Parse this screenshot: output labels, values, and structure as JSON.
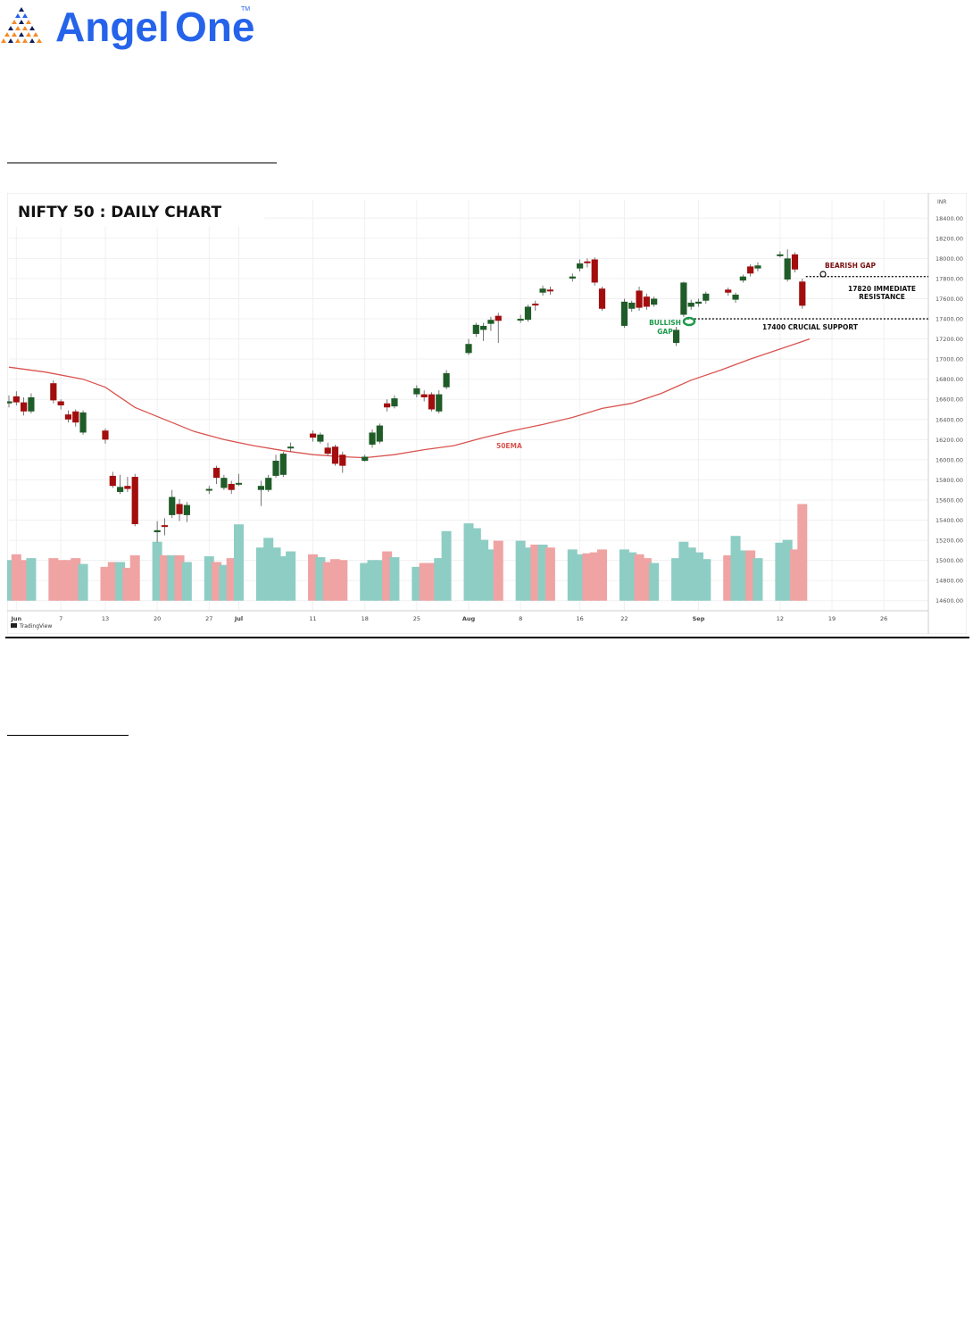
{
  "brand": {
    "name_part1": "Angel",
    "name_part2": "One",
    "tm": "TM",
    "color_primary": "#2563eb",
    "color_accent": "#f28c28",
    "color_dark": "#0b1f5c"
  },
  "chart_data": {
    "type": "candlestick",
    "title": "NIFTY 50 : DAILY CHART",
    "currency": "INR",
    "y_ticks": [
      14600,
      14800,
      15000,
      15200,
      15400,
      15600,
      15800,
      16000,
      16200,
      16400,
      16600,
      16800,
      17000,
      17200,
      17400,
      17600,
      17800,
      18000,
      18200,
      18400
    ],
    "y_range": [
      14500,
      18580
    ],
    "x_ticks": [
      {
        "label": "Jun",
        "day": 1
      },
      {
        "label": "7",
        "day": 7
      },
      {
        "label": "13",
        "day": 13
      },
      {
        "label": "20",
        "day": 20
      },
      {
        "label": "27",
        "day": 27
      },
      {
        "label": "Jul",
        "day": 31
      },
      {
        "label": "11",
        "day": 41
      },
      {
        "label": "18",
        "day": 48
      },
      {
        "label": "25",
        "day": 55
      },
      {
        "label": "Aug",
        "day": 62
      },
      {
        "label": "8",
        "day": 69
      },
      {
        "label": "16",
        "day": 77
      },
      {
        "label": "22",
        "day": 83
      },
      {
        "label": "Sep",
        "day": 93
      },
      {
        "label": "12",
        "day": 104
      },
      {
        "label": "19",
        "day": 111
      },
      {
        "label": "26",
        "day": 118
      }
    ],
    "x_range": [
      0,
      124
    ],
    "colors": {
      "up": "#1f5c28",
      "down": "#a30d0d",
      "vol_up": "#8ecdc4",
      "vol_down": "#efa3a3",
      "ema": "#d9534f"
    },
    "candles": [
      {
        "day": 0,
        "o": 16560,
        "c": 16580,
        "h": 16640,
        "l": 16520,
        "v": 0.42
      },
      {
        "day": 1,
        "o": 16630,
        "c": 16570,
        "h": 16680,
        "l": 16540,
        "v": 0.48
      },
      {
        "day": 2,
        "o": 16570,
        "c": 16480,
        "h": 16620,
        "l": 16440,
        "v": 0.42
      },
      {
        "day": 3,
        "o": 16480,
        "c": 16620,
        "h": 16660,
        "l": 16460,
        "v": 0.44
      },
      {
        "day": 6,
        "o": 16760,
        "c": 16590,
        "h": 16790,
        "l": 16560,
        "v": 0.44
      },
      {
        "day": 7,
        "o": 16580,
        "c": 16540,
        "h": 16600,
        "l": 16500,
        "v": 0.42
      },
      {
        "day": 8,
        "o": 16450,
        "c": 16400,
        "h": 16490,
        "l": 16370,
        "v": 0.42
      },
      {
        "day": 9,
        "o": 16480,
        "c": 16370,
        "h": 16500,
        "l": 16330,
        "v": 0.44
      },
      {
        "day": 10,
        "o": 16270,
        "c": 16470,
        "h": 16490,
        "l": 16250,
        "v": 0.38
      },
      {
        "day": 13,
        "o": 16290,
        "c": 16200,
        "h": 16310,
        "l": 16160,
        "v": 0.35
      },
      {
        "day": 14,
        "o": 15840,
        "c": 15740,
        "h": 15880,
        "l": 15720,
        "v": 0.4
      },
      {
        "day": 15,
        "o": 15680,
        "c": 15730,
        "h": 15850,
        "l": 15660,
        "v": 0.4
      },
      {
        "day": 16,
        "o": 15740,
        "c": 15710,
        "h": 15830,
        "l": 15680,
        "v": 0.34
      },
      {
        "day": 17,
        "o": 15830,
        "c": 15360,
        "h": 15860,
        "l": 15340,
        "v": 0.47
      },
      {
        "day": 20,
        "o": 15280,
        "c": 15300,
        "h": 15390,
        "l": 15180,
        "v": 0.61
      },
      {
        "day": 21,
        "o": 15350,
        "c": 15340,
        "h": 15420,
        "l": 15250,
        "v": 0.47
      },
      {
        "day": 22,
        "o": 15450,
        "c": 15630,
        "h": 15700,
        "l": 15420,
        "v": 0.47
      },
      {
        "day": 23,
        "o": 15560,
        "c": 15460,
        "h": 15610,
        "l": 15390,
        "v": 0.47
      },
      {
        "day": 24,
        "o": 15450,
        "c": 15550,
        "h": 15580,
        "l": 15380,
        "v": 0.4
      },
      {
        "day": 27,
        "o": 15700,
        "c": 15710,
        "h": 15740,
        "l": 15660,
        "v": 0.46
      },
      {
        "day": 28,
        "o": 15920,
        "c": 15820,
        "h": 15940,
        "l": 15760,
        "v": 0.4
      },
      {
        "day": 29,
        "o": 15720,
        "c": 15820,
        "h": 15850,
        "l": 15700,
        "v": 0.37
      },
      {
        "day": 30,
        "o": 15760,
        "c": 15700,
        "h": 15790,
        "l": 15660,
        "v": 0.44
      },
      {
        "day": 31,
        "o": 15760,
        "c": 15770,
        "h": 15860,
        "l": 15740,
        "v": 0.79
      },
      {
        "day": 34,
        "o": 15700,
        "c": 15740,
        "h": 15790,
        "l": 15540,
        "v": 0.55
      },
      {
        "day": 35,
        "o": 15700,
        "c": 15820,
        "h": 15850,
        "l": 15680,
        "v": 0.65
      },
      {
        "day": 36,
        "o": 15840,
        "c": 15990,
        "h": 16050,
        "l": 15820,
        "v": 0.55
      },
      {
        "day": 37,
        "o": 15850,
        "c": 16060,
        "h": 16080,
        "l": 15830,
        "v": 0.46
      },
      {
        "day": 38,
        "o": 16120,
        "c": 16130,
        "h": 16170,
        "l": 16080,
        "v": 0.51
      },
      {
        "day": 41,
        "o": 16260,
        "c": 16220,
        "h": 16290,
        "l": 16180,
        "v": 0.48
      },
      {
        "day": 42,
        "o": 16180,
        "c": 16250,
        "h": 16270,
        "l": 16160,
        "v": 0.45
      },
      {
        "day": 43,
        "o": 16120,
        "c": 16060,
        "h": 16170,
        "l": 16040,
        "v": 0.4
      },
      {
        "day": 44,
        "o": 16130,
        "c": 15960,
        "h": 16150,
        "l": 15940,
        "v": 0.43
      },
      {
        "day": 45,
        "o": 16050,
        "c": 15940,
        "h": 16080,
        "l": 15870,
        "v": 0.42
      },
      {
        "day": 48,
        "o": 15990,
        "c": 16030,
        "h": 16050,
        "l": 15980,
        "v": 0.39
      },
      {
        "day": 49,
        "o": 16150,
        "c": 16270,
        "h": 16300,
        "l": 16120,
        "v": 0.42
      },
      {
        "day": 50,
        "o": 16180,
        "c": 16340,
        "h": 16360,
        "l": 16160,
        "v": 0.42
      },
      {
        "day": 51,
        "o": 16560,
        "c": 16520,
        "h": 16600,
        "l": 16480,
        "v": 0.51
      },
      {
        "day": 52,
        "o": 16530,
        "c": 16610,
        "h": 16640,
        "l": 16510,
        "v": 0.45
      },
      {
        "day": 55,
        "o": 16650,
        "c": 16710,
        "h": 16740,
        "l": 16620,
        "v": 0.35
      },
      {
        "day": 56,
        "o": 16650,
        "c": 16620,
        "h": 16690,
        "l": 16580,
        "v": 0.39
      },
      {
        "day": 57,
        "o": 16650,
        "c": 16500,
        "h": 16670,
        "l": 16480,
        "v": 0.39
      },
      {
        "day": 58,
        "o": 16480,
        "c": 16650,
        "h": 16690,
        "l": 16460,
        "v": 0.44
      },
      {
        "day": 59,
        "o": 16720,
        "c": 16860,
        "h": 16890,
        "l": 16700,
        "v": 0.72
      },
      {
        "day": 62,
        "o": 17060,
        "c": 17150,
        "h": 17200,
        "l": 17040,
        "v": 0.8
      },
      {
        "day": 63,
        "o": 17250,
        "c": 17340,
        "h": 17360,
        "l": 17220,
        "v": 0.75
      },
      {
        "day": 64,
        "o": 17290,
        "c": 17330,
        "h": 17360,
        "l": 17180,
        "v": 0.63
      },
      {
        "day": 65,
        "o": 17350,
        "c": 17390,
        "h": 17420,
        "l": 17280,
        "v": 0.53
      },
      {
        "day": 66,
        "o": 17430,
        "c": 17380,
        "h": 17460,
        "l": 17160,
        "v": 0.62
      },
      {
        "day": 69,
        "o": 17400,
        "c": 17400,
        "h": 17440,
        "l": 17360,
        "v": 0.62
      },
      {
        "day": 70,
        "o": 17390,
        "c": 17520,
        "h": 17540,
        "l": 17370,
        "v": 0.55
      },
      {
        "day": 71,
        "o": 17550,
        "c": 17540,
        "h": 17580,
        "l": 17480,
        "v": 0.58
      },
      {
        "day": 72,
        "o": 17660,
        "c": 17700,
        "h": 17730,
        "l": 17630,
        "v": 0.58
      },
      {
        "day": 73,
        "o": 17690,
        "c": 17680,
        "h": 17720,
        "l": 17640,
        "v": 0.55
      },
      {
        "day": 76,
        "o": 17800,
        "c": 17820,
        "h": 17850,
        "l": 17770,
        "v": 0.53
      },
      {
        "day": 77,
        "o": 17900,
        "c": 17950,
        "h": 17990,
        "l": 17870,
        "v": 0.48
      },
      {
        "day": 78,
        "o": 17970,
        "c": 17960,
        "h": 18000,
        "l": 17910,
        "v": 0.49
      },
      {
        "day": 79,
        "o": 17990,
        "c": 17760,
        "h": 18010,
        "l": 17730,
        "v": 0.5
      },
      {
        "day": 80,
        "o": 17700,
        "c": 17500,
        "h": 17720,
        "l": 17480,
        "v": 0.53
      },
      {
        "day": 83,
        "o": 17330,
        "c": 17570,
        "h": 17600,
        "l": 17310,
        "v": 0.53
      },
      {
        "day": 84,
        "o": 17500,
        "c": 17560,
        "h": 17580,
        "l": 17470,
        "v": 0.5
      },
      {
        "day": 85,
        "o": 17680,
        "c": 17510,
        "h": 17720,
        "l": 17480,
        "v": 0.48
      },
      {
        "day": 86,
        "o": 17620,
        "c": 17520,
        "h": 17650,
        "l": 17490,
        "v": 0.44
      },
      {
        "day": 87,
        "o": 17540,
        "c": 17600,
        "h": 17620,
        "l": 17520,
        "v": 0.39
      },
      {
        "day": 90,
        "o": 17160,
        "c": 17290,
        "h": 17320,
        "l": 17130,
        "v": 0.44
      },
      {
        "day": 91,
        "o": 17440,
        "c": 17760,
        "h": 17770,
        "l": 17420,
        "v": 0.61
      },
      {
        "day": 92,
        "o": 17520,
        "c": 17560,
        "h": 17590,
        "l": 17490,
        "v": 0.55
      },
      {
        "day": 93,
        "o": 17550,
        "c": 17570,
        "h": 17600,
        "l": 17520,
        "v": 0.5
      },
      {
        "day": 94,
        "o": 17580,
        "c": 17650,
        "h": 17670,
        "l": 17550,
        "v": 0.43
      },
      {
        "day": 97,
        "o": 17690,
        "c": 17660,
        "h": 17710,
        "l": 17630,
        "v": 0.47
      },
      {
        "day": 98,
        "o": 17590,
        "c": 17640,
        "h": 17660,
        "l": 17560,
        "v": 0.67
      },
      {
        "day": 99,
        "o": 17780,
        "c": 17820,
        "h": 17840,
        "l": 17760,
        "v": 0.52
      },
      {
        "day": 100,
        "o": 17920,
        "c": 17850,
        "h": 17940,
        "l": 17820,
        "v": 0.52
      },
      {
        "day": 101,
        "o": 17900,
        "c": 17930,
        "h": 17960,
        "l": 17870,
        "v": 0.44
      },
      {
        "day": 104,
        "o": 18030,
        "c": 18040,
        "h": 18070,
        "l": 18010,
        "v": 0.6
      },
      {
        "day": 105,
        "o": 17790,
        "c": 18000,
        "h": 18090,
        "l": 17770,
        "v": 0.63
      },
      {
        "day": 106,
        "o": 18040,
        "c": 17890,
        "h": 18060,
        "l": 17860,
        "v": 0.53
      },
      {
        "day": 107,
        "o": 17770,
        "c": 17530,
        "h": 17800,
        "l": 17500,
        "v": 1.0
      }
    ],
    "ema_label": "50EMA",
    "ema": [
      [
        0,
        16920
      ],
      [
        5,
        16870
      ],
      [
        10,
        16800
      ],
      [
        13,
        16720
      ],
      [
        17,
        16520
      ],
      [
        21,
        16400
      ],
      [
        25,
        16280
      ],
      [
        29,
        16200
      ],
      [
        33,
        16140
      ],
      [
        37,
        16090
      ],
      [
        41,
        16050
      ],
      [
        45,
        16030
      ],
      [
        48,
        16020
      ],
      [
        52,
        16050
      ],
      [
        56,
        16100
      ],
      [
        60,
        16140
      ],
      [
        64,
        16220
      ],
      [
        68,
        16290
      ],
      [
        72,
        16350
      ],
      [
        76,
        16420
      ],
      [
        80,
        16510
      ],
      [
        84,
        16560
      ],
      [
        88,
        16660
      ],
      [
        92,
        16790
      ],
      [
        96,
        16890
      ],
      [
        100,
        17000
      ],
      [
        104,
        17100
      ],
      [
        108,
        17200
      ]
    ],
    "annotations": {
      "bearish_gap": "BEARISH GAP",
      "resistance_line1": "17820 IMMEDIATE",
      "resistance_line2": "RESISTANCE",
      "support": "17400 CRUCIAL SUPPORT",
      "bullish_line1": "BULLISH",
      "bullish_line2": "GAP",
      "resistance_level": 17820,
      "support_level": 17400
    },
    "footer_text": "TradingView"
  }
}
